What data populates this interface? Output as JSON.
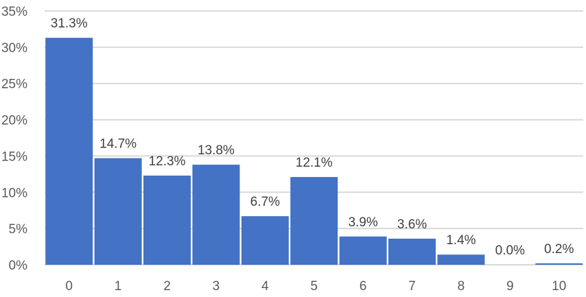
{
  "chart_data": {
    "type": "bar",
    "categories": [
      "0",
      "1",
      "2",
      "3",
      "4",
      "5",
      "6",
      "7",
      "8",
      "9",
      "10"
    ],
    "values": [
      31.3,
      14.7,
      12.3,
      13.8,
      6.7,
      12.1,
      3.9,
      3.6,
      1.4,
      0.0,
      0.2
    ],
    "data_labels": [
      "31.3%",
      "14.7%",
      "12.3%",
      "13.8%",
      "6.7%",
      "12.1%",
      "3.9%",
      "3.6%",
      "1.4%",
      "0.0%",
      "0.2%"
    ],
    "y_ticks": [
      0,
      5,
      10,
      15,
      20,
      25,
      30,
      35
    ],
    "y_tick_labels": [
      "0%",
      "5%",
      "10%",
      "15%",
      "20%",
      "25%",
      "30%",
      "35%"
    ],
    "ylim": [
      0,
      35
    ],
    "title": "",
    "xlabel": "",
    "ylabel": "",
    "grid": true,
    "legend": "none",
    "colors": {
      "bar": "#4472C4",
      "gridline": "#D9D9D9",
      "axis_text": "#595959",
      "label_text": "#404040"
    }
  }
}
